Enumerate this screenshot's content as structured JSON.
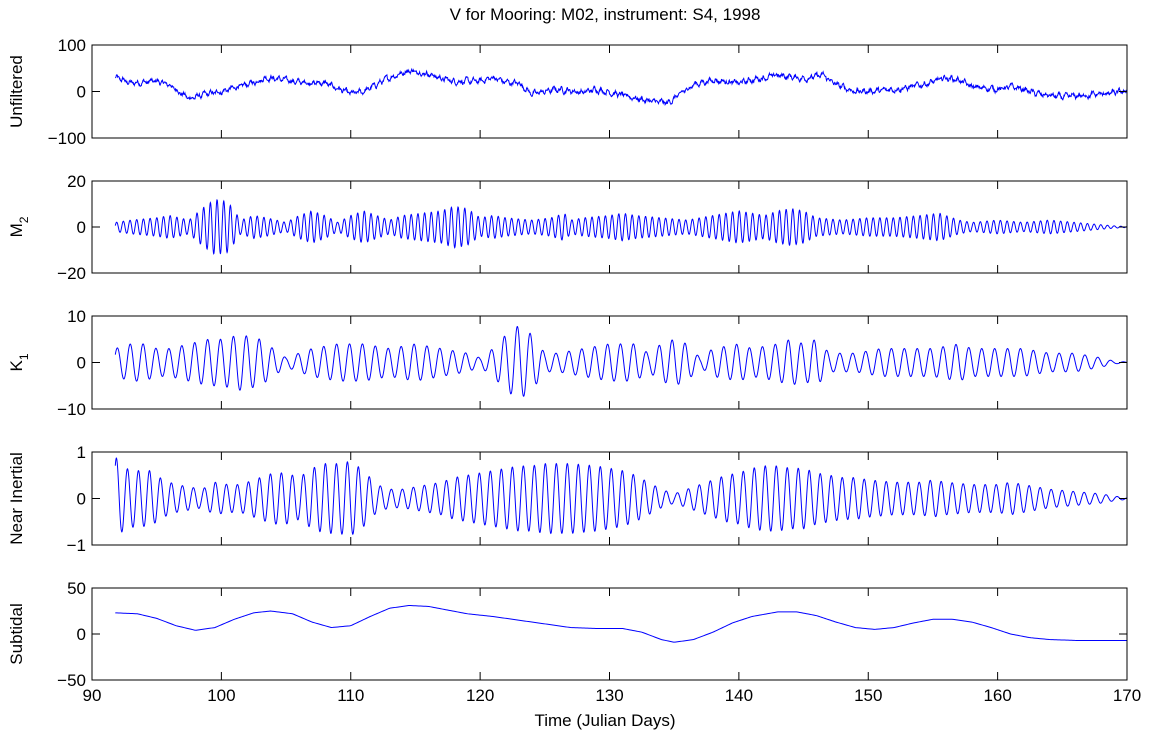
{
  "chart_data": {
    "type": "line",
    "title": "V for Mooring: M02, instrument: S4, 1998",
    "xlabel": "Time (Julian Days)",
    "xlim": [
      90,
      170
    ],
    "xticks": [
      90,
      100,
      110,
      120,
      130,
      140,
      150,
      160,
      170
    ],
    "x_start": 91.8,
    "x_end": 170,
    "line_color": "#0000ff",
    "panels": [
      {
        "name": "Unfiltered",
        "ylabel": "Unfiltered",
        "ylim": [
          -100,
          100
        ],
        "yticks": [
          -100,
          0,
          100
        ],
        "ytick_labels": [
          "−100",
          "0",
          "100"
        ],
        "envelope": [
          [
            91.8,
            30
          ],
          [
            93,
            18
          ],
          [
            95,
            22
          ],
          [
            96,
            14
          ],
          [
            97.5,
            -15
          ],
          [
            98.5,
            -8
          ],
          [
            100,
            0
          ],
          [
            102,
            15
          ],
          [
            103.5,
            30
          ],
          [
            105,
            25
          ],
          [
            106,
            20
          ],
          [
            108,
            18
          ],
          [
            110,
            -5
          ],
          [
            111,
            0
          ],
          [
            112,
            15
          ],
          [
            113,
            30
          ],
          [
            114.5,
            45
          ],
          [
            116,
            38
          ],
          [
            117,
            28
          ],
          [
            118,
            22
          ],
          [
            120,
            22
          ],
          [
            121,
            30
          ],
          [
            122,
            20
          ],
          [
            123,
            18
          ],
          [
            124,
            -5
          ],
          [
            126,
            5
          ],
          [
            128,
            -2
          ],
          [
            129,
            5
          ],
          [
            131,
            -8
          ],
          [
            133,
            -20
          ],
          [
            134.5,
            -25
          ],
          [
            135.5,
            -5
          ],
          [
            136.5,
            15
          ],
          [
            138,
            25
          ],
          [
            140,
            18
          ],
          [
            141,
            25
          ],
          [
            143,
            35
          ],
          [
            145,
            28
          ],
          [
            146.5,
            35
          ],
          [
            147.5,
            15
          ],
          [
            149,
            0
          ],
          [
            151,
            2
          ],
          [
            153,
            8
          ],
          [
            155,
            20
          ],
          [
            156,
            30
          ],
          [
            157,
            25
          ],
          [
            158,
            10
          ],
          [
            160,
            5
          ],
          [
            161,
            10
          ],
          [
            162,
            5
          ],
          [
            163,
            -5
          ],
          [
            165,
            -12
          ],
          [
            167,
            -8
          ],
          [
            169,
            -3
          ],
          [
            170,
            0
          ]
        ],
        "noise": 7
      },
      {
        "name": "M_2",
        "ylabel": "M",
        "ylabel_sub": "2",
        "ylim": [
          -20,
          20
        ],
        "yticks": [
          -20,
          0,
          20
        ],
        "ytick_labels": [
          "−20",
          "0",
          "20"
        ],
        "period": 0.5175,
        "envelope": [
          [
            91.8,
            2
          ],
          [
            93,
            3
          ],
          [
            95,
            4
          ],
          [
            96,
            5
          ],
          [
            97.5,
            3
          ],
          [
            98.5,
            8
          ],
          [
            99.5,
            12
          ],
          [
            100.5,
            11
          ],
          [
            101.5,
            3
          ],
          [
            102.5,
            5
          ],
          [
            103.5,
            4
          ],
          [
            105,
            2
          ],
          [
            106,
            5
          ],
          [
            107,
            7
          ],
          [
            108,
            5
          ],
          [
            109,
            2
          ],
          [
            110,
            5
          ],
          [
            111,
            7
          ],
          [
            112,
            5
          ],
          [
            113,
            3
          ],
          [
            114,
            5
          ],
          [
            115.5,
            6
          ],
          [
            117,
            7
          ],
          [
            118,
            9
          ],
          [
            119,
            8
          ],
          [
            120,
            4
          ],
          [
            121,
            5
          ],
          [
            122,
            4
          ],
          [
            124,
            3
          ],
          [
            125.5,
            4
          ],
          [
            126.5,
            6
          ],
          [
            127,
            3
          ],
          [
            128,
            4
          ],
          [
            130,
            5
          ],
          [
            131,
            6
          ],
          [
            132,
            5
          ],
          [
            134,
            4
          ],
          [
            136,
            3
          ],
          [
            138,
            5
          ],
          [
            140,
            7
          ],
          [
            141,
            6
          ],
          [
            142,
            5
          ],
          [
            143,
            7
          ],
          [
            144,
            8
          ],
          [
            145,
            7
          ],
          [
            146,
            4
          ],
          [
            148,
            3
          ],
          [
            150,
            4
          ],
          [
            152,
            4
          ],
          [
            154,
            5
          ],
          [
            155.5,
            6
          ],
          [
            157,
            3
          ],
          [
            158,
            2
          ],
          [
            160,
            3
          ],
          [
            162,
            2
          ],
          [
            164,
            3
          ],
          [
            166,
            2
          ],
          [
            168,
            1
          ],
          [
            169,
            0.5
          ],
          [
            170,
            0.2
          ]
        ]
      },
      {
        "name": "K_1",
        "ylabel": "K",
        "ylabel_sub": "1",
        "ylim": [
          -10,
          10
        ],
        "yticks": [
          -10,
          0,
          10
        ],
        "ytick_labels": [
          "−10",
          "0",
          "10"
        ],
        "period": 0.9973,
        "envelope": [
          [
            91.8,
            3
          ],
          [
            93,
            4
          ],
          [
            94,
            4
          ],
          [
            95,
            3
          ],
          [
            96,
            3
          ],
          [
            97.5,
            4
          ],
          [
            99,
            5
          ],
          [
            100,
            5
          ],
          [
            101.5,
            6
          ],
          [
            103,
            5
          ],
          [
            104,
            3
          ],
          [
            105,
            1
          ],
          [
            107,
            3
          ],
          [
            109,
            4
          ],
          [
            111,
            4
          ],
          [
            113,
            3
          ],
          [
            115,
            4
          ],
          [
            117,
            3
          ],
          [
            119,
            2
          ],
          [
            120,
            1
          ],
          [
            121,
            3
          ],
          [
            122,
            6
          ],
          [
            123,
            8
          ],
          [
            124,
            6
          ],
          [
            125,
            2
          ],
          [
            126,
            2
          ],
          [
            128,
            3
          ],
          [
            130,
            4
          ],
          [
            132,
            4
          ],
          [
            133,
            2
          ],
          [
            134,
            4
          ],
          [
            135,
            5
          ],
          [
            136,
            4
          ],
          [
            137,
            1
          ],
          [
            138,
            3
          ],
          [
            140,
            4
          ],
          [
            141,
            3
          ],
          [
            143,
            4
          ],
          [
            144,
            5
          ],
          [
            145,
            4
          ],
          [
            146,
            5
          ],
          [
            147,
            2
          ],
          [
            149,
            2
          ],
          [
            151,
            3
          ],
          [
            153,
            3
          ],
          [
            155,
            3
          ],
          [
            157,
            4
          ],
          [
            158,
            3
          ],
          [
            160,
            3
          ],
          [
            162,
            3
          ],
          [
            164,
            2
          ],
          [
            166,
            2
          ],
          [
            168,
            1
          ],
          [
            169,
            0.3
          ],
          [
            170,
            0.1
          ]
        ]
      },
      {
        "name": "Near Inertial",
        "ylabel": "Near Inertial",
        "ylim": [
          -1,
          1
        ],
        "yticks": [
          -1,
          0,
          1
        ],
        "ytick_labels": [
          "−1",
          "0",
          "1"
        ],
        "period": 0.85,
        "envelope": [
          [
            91.8,
            0.9
          ],
          [
            92.5,
            0.65
          ],
          [
            93.5,
            0.6
          ],
          [
            94.5,
            0.6
          ],
          [
            95.5,
            0.4
          ],
          [
            96.5,
            0.3
          ],
          [
            97.5,
            0.25
          ],
          [
            98.5,
            0.2
          ],
          [
            99.5,
            0.35
          ],
          [
            100.5,
            0.3
          ],
          [
            101.5,
            0.3
          ],
          [
            103,
            0.45
          ],
          [
            104,
            0.55
          ],
          [
            105,
            0.55
          ],
          [
            106,
            0.45
          ],
          [
            107,
            0.65
          ],
          [
            108,
            0.75
          ],
          [
            109,
            0.75
          ],
          [
            110,
            0.8
          ],
          [
            111,
            0.6
          ],
          [
            112,
            0.3
          ],
          [
            113,
            0.2
          ],
          [
            114,
            0.2
          ],
          [
            115,
            0.25
          ],
          [
            116,
            0.3
          ],
          [
            117,
            0.35
          ],
          [
            118,
            0.45
          ],
          [
            119,
            0.5
          ],
          [
            120,
            0.55
          ],
          [
            121,
            0.6
          ],
          [
            122,
            0.65
          ],
          [
            123,
            0.7
          ],
          [
            124,
            0.7
          ],
          [
            125,
            0.75
          ],
          [
            127,
            0.75
          ],
          [
            129,
            0.7
          ],
          [
            130,
            0.65
          ],
          [
            131,
            0.6
          ],
          [
            132,
            0.5
          ],
          [
            133,
            0.35
          ],
          [
            134,
            0.2
          ],
          [
            135,
            0.1
          ],
          [
            136,
            0.2
          ],
          [
            137,
            0.3
          ],
          [
            138,
            0.4
          ],
          [
            139,
            0.5
          ],
          [
            140,
            0.55
          ],
          [
            141,
            0.65
          ],
          [
            142,
            0.7
          ],
          [
            143,
            0.7
          ],
          [
            144,
            0.65
          ],
          [
            145,
            0.65
          ],
          [
            146,
            0.55
          ],
          [
            147,
            0.5
          ],
          [
            148,
            0.45
          ],
          [
            149,
            0.45
          ],
          [
            150,
            0.4
          ],
          [
            152,
            0.35
          ],
          [
            154,
            0.35
          ],
          [
            155,
            0.4
          ],
          [
            156,
            0.35
          ],
          [
            158,
            0.3
          ],
          [
            160,
            0.3
          ],
          [
            161,
            0.35
          ],
          [
            162,
            0.3
          ],
          [
            164,
            0.2
          ],
          [
            166,
            0.15
          ],
          [
            168,
            0.1
          ],
          [
            169,
            0.05
          ],
          [
            170,
            0.02
          ]
        ]
      },
      {
        "name": "Subtidal",
        "ylabel": "Subtidal",
        "ylim": [
          -50,
          50
        ],
        "yticks": [
          -50,
          0,
          50
        ],
        "ytick_labels": [
          "−50",
          "0",
          "50"
        ],
        "points": [
          [
            91.8,
            23
          ],
          [
            93.5,
            22
          ],
          [
            95,
            17
          ],
          [
            96.5,
            9
          ],
          [
            98,
            4
          ],
          [
            99.5,
            7
          ],
          [
            101,
            16
          ],
          [
            102.5,
            23
          ],
          [
            103.8,
            25
          ],
          [
            105.5,
            22
          ],
          [
            107,
            13
          ],
          [
            108.5,
            7
          ],
          [
            110,
            9
          ],
          [
            111.5,
            19
          ],
          [
            113,
            28
          ],
          [
            114.5,
            31
          ],
          [
            116,
            30
          ],
          [
            117.5,
            26
          ],
          [
            119,
            22
          ],
          [
            121,
            19
          ],
          [
            123,
            15
          ],
          [
            125,
            11
          ],
          [
            127,
            7
          ],
          [
            129,
            6
          ],
          [
            131,
            6
          ],
          [
            132.5,
            2
          ],
          [
            134,
            -6
          ],
          [
            135,
            -9
          ],
          [
            136.5,
            -6
          ],
          [
            138,
            2
          ],
          [
            139.5,
            12
          ],
          [
            141,
            19
          ],
          [
            143,
            24
          ],
          [
            144.5,
            24
          ],
          [
            146,
            20
          ],
          [
            147.5,
            13
          ],
          [
            149,
            7
          ],
          [
            150.5,
            5
          ],
          [
            152,
            7
          ],
          [
            153.5,
            12
          ],
          [
            155,
            16
          ],
          [
            156.5,
            16
          ],
          [
            158,
            13
          ],
          [
            159.5,
            7
          ],
          [
            161,
            0
          ],
          [
            162.5,
            -4
          ],
          [
            164,
            -6
          ],
          [
            166,
            -7
          ],
          [
            168,
            -7
          ],
          [
            170,
            -7
          ]
        ]
      }
    ]
  }
}
